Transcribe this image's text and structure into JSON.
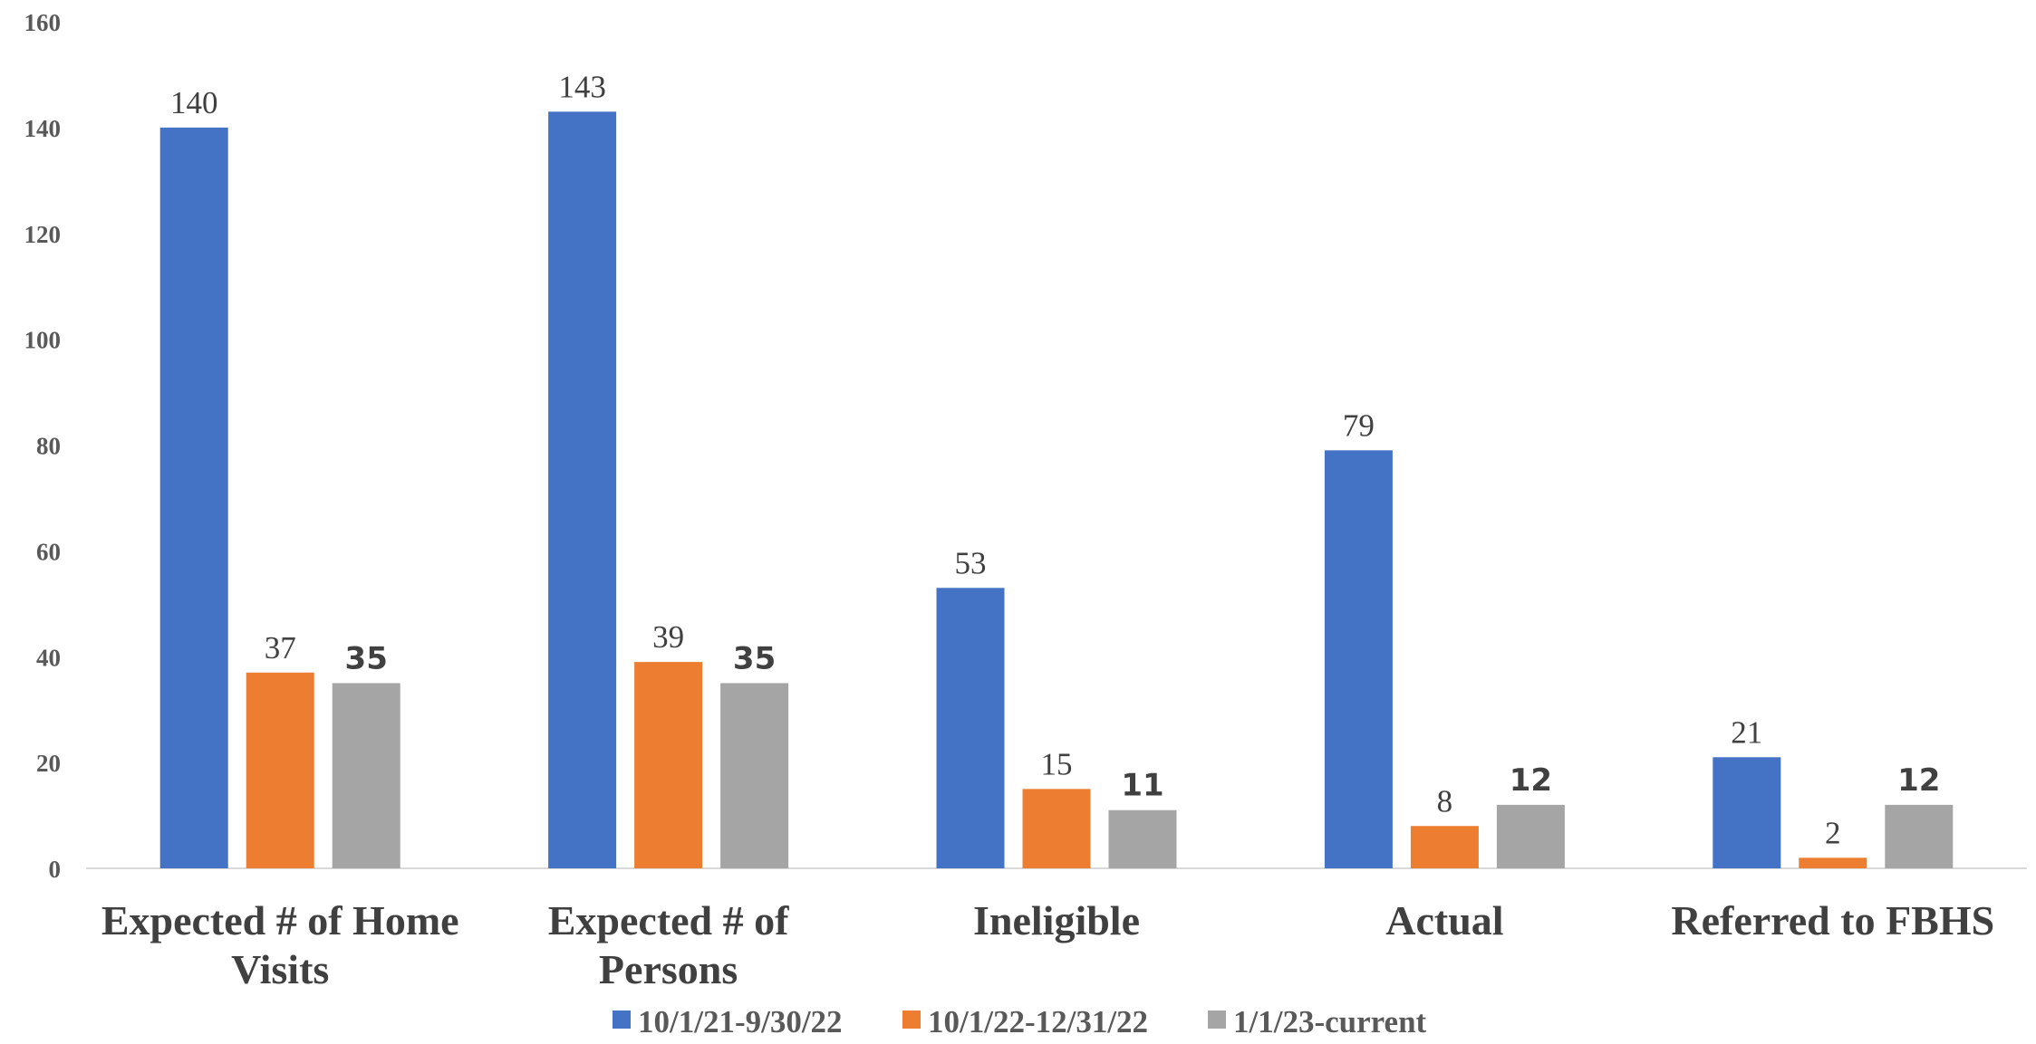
{
  "chart_data": {
    "type": "bar",
    "categories": [
      [
        "Expected # of Home",
        "Visits"
      ],
      [
        "Expected # of",
        "Persons"
      ],
      [
        "Ineligible"
      ],
      [
        "Actual"
      ],
      [
        "Referred to FBHS"
      ]
    ],
    "series": [
      {
        "name": "10/1/21-9/30/22",
        "color": "#4472C4",
        "values": [
          140,
          143,
          53,
          79,
          21
        ],
        "label_style": "serif"
      },
      {
        "name": "10/1/22-12/31/22",
        "color": "#ED7D31",
        "values": [
          37,
          39,
          15,
          8,
          2
        ],
        "label_style": "serif"
      },
      {
        "name": "1/1/23-current",
        "color": "#A5A5A5",
        "values": [
          35,
          35,
          11,
          12,
          12
        ],
        "label_style": "bold"
      }
    ],
    "ylim": [
      0,
      160
    ],
    "yticks": [
      0,
      20,
      40,
      60,
      80,
      100,
      120,
      140,
      160
    ],
    "grid": false,
    "legend_position": "bottom"
  }
}
